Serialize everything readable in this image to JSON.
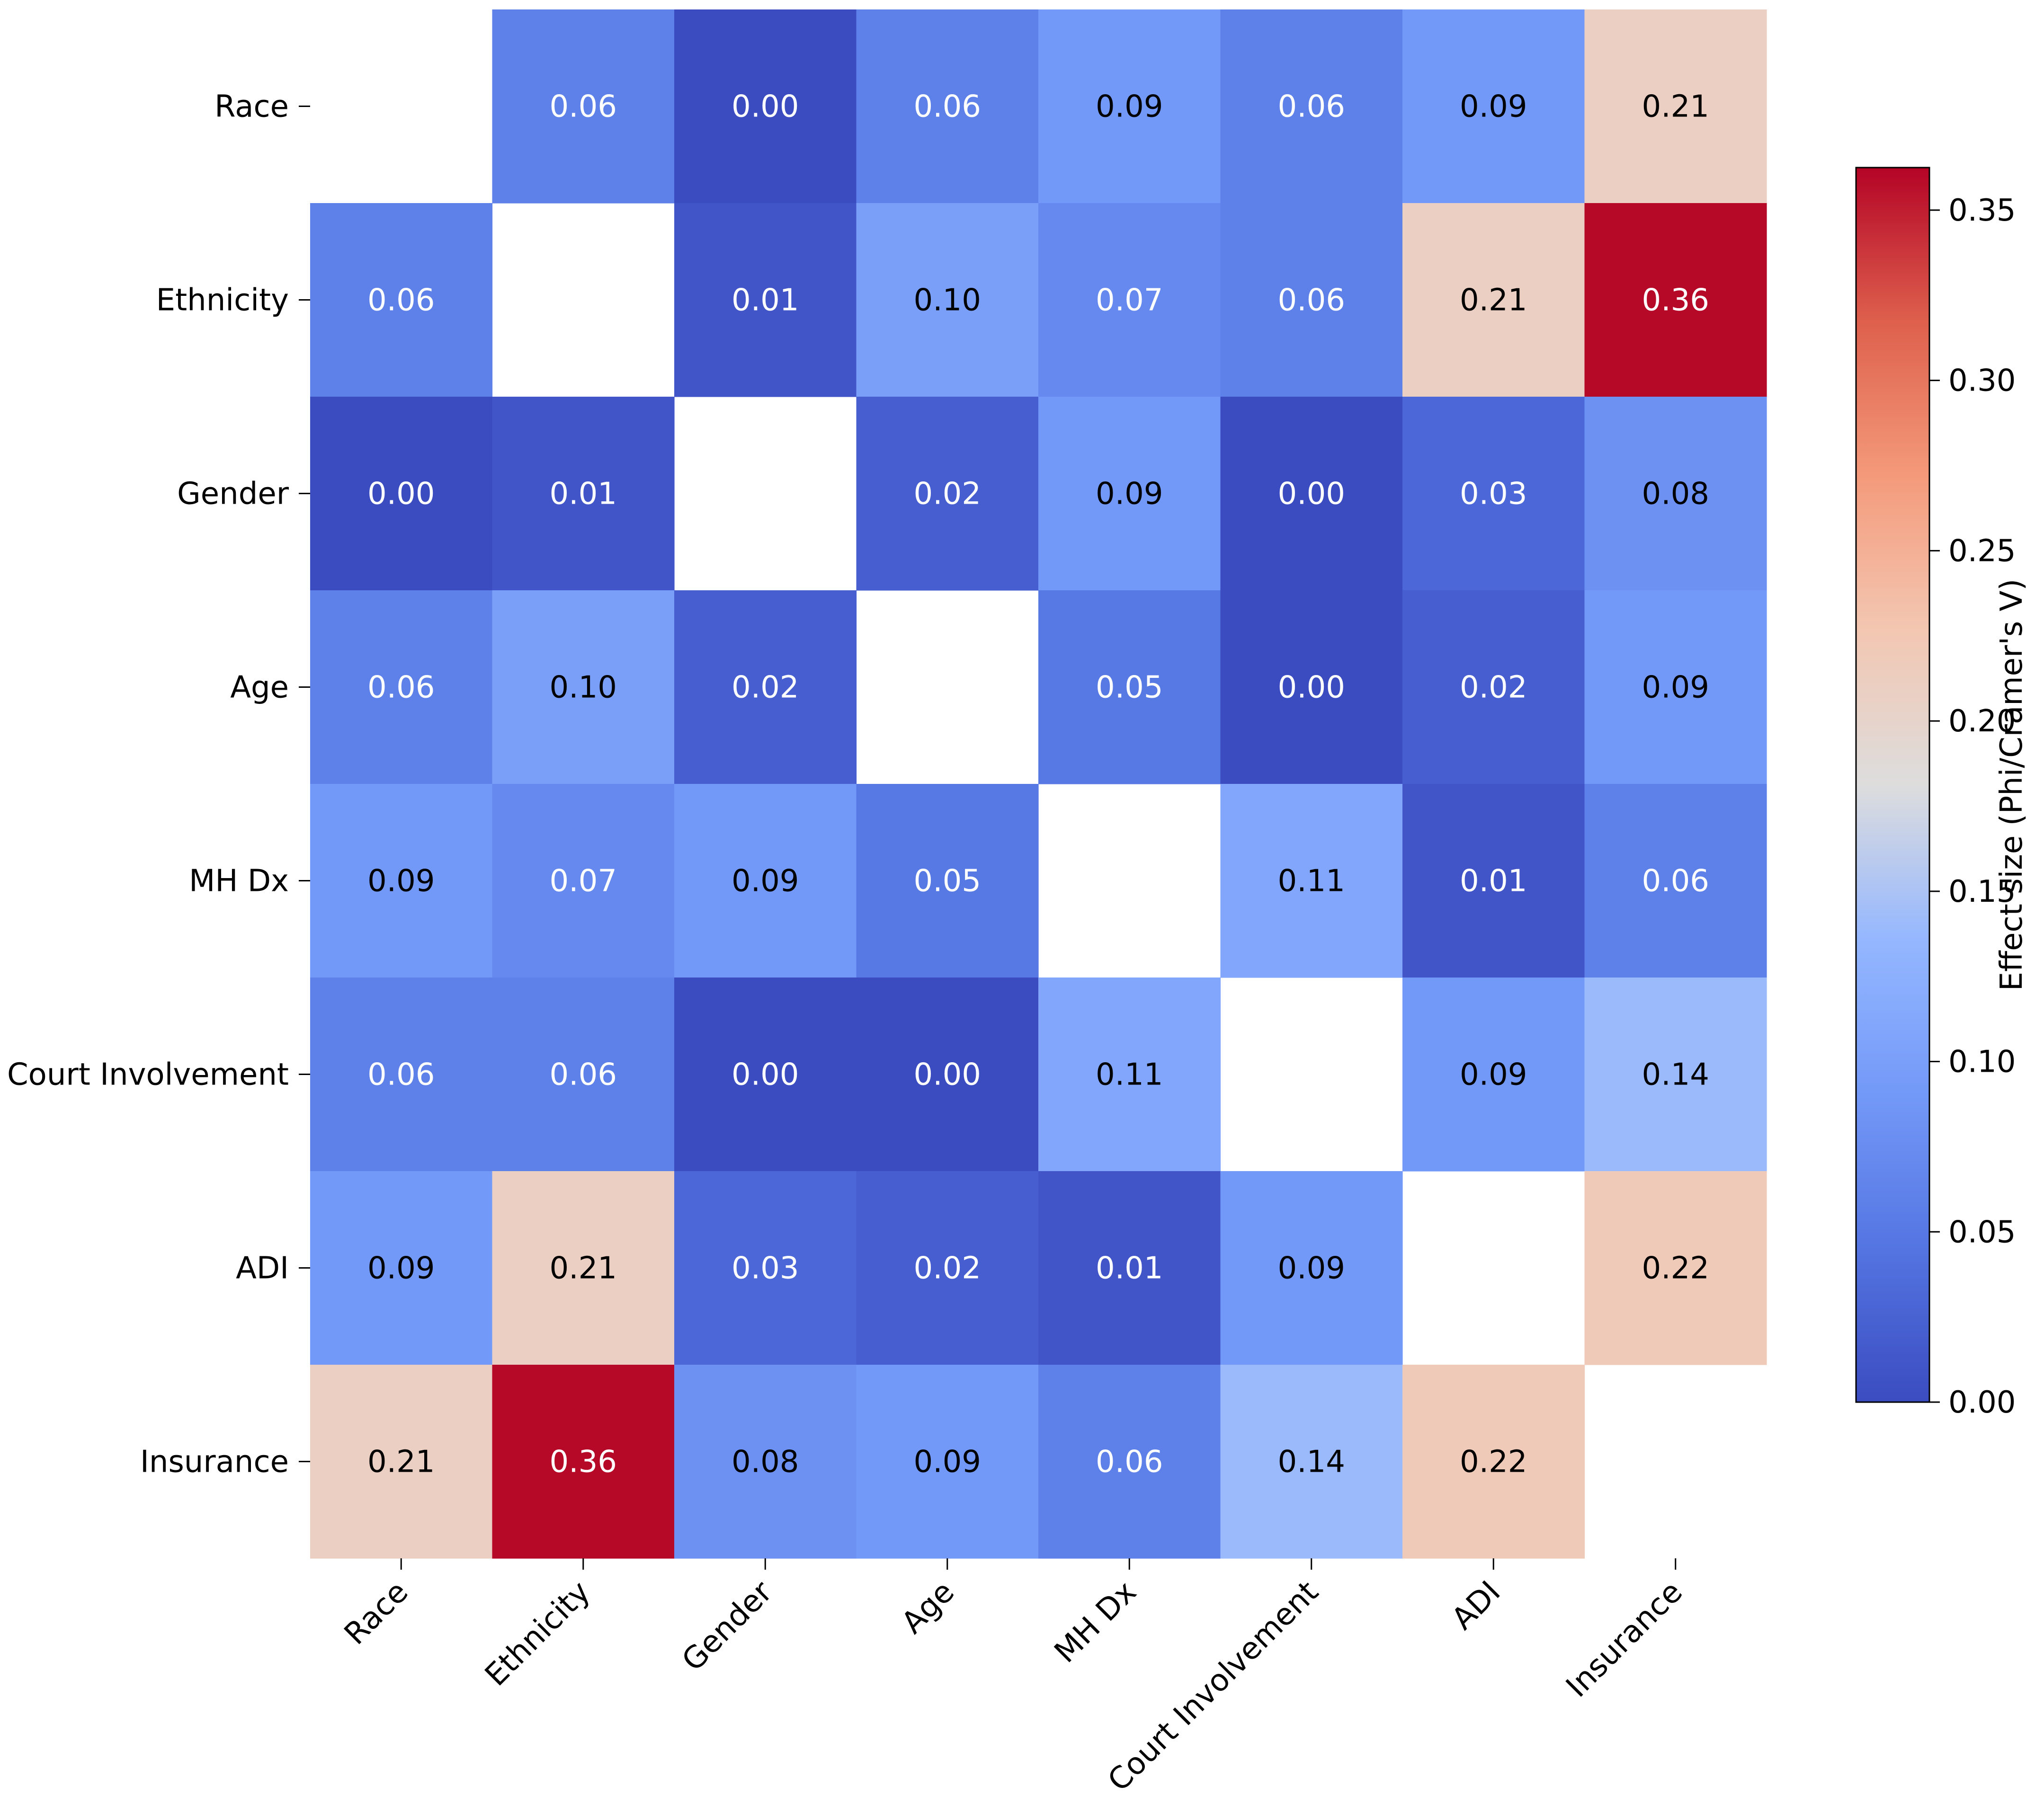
{
  "chart_data": {
    "type": "heatmap",
    "title": "",
    "xlabel": "",
    "ylabel": "",
    "row_labels": [
      "Race",
      "Ethnicity",
      "Gender",
      "Age",
      "MH Dx",
      "Court Involvement",
      "ADI",
      "Insurance"
    ],
    "col_labels": [
      "Race",
      "Ethnicity",
      "Gender",
      "Age",
      "MH Dx",
      "Court Involvement",
      "ADI",
      "Insurance"
    ],
    "values": [
      [
        null,
        0.06,
        0.0,
        0.06,
        0.09,
        0.06,
        0.09,
        0.21
      ],
      [
        0.06,
        null,
        0.01,
        0.1,
        0.07,
        0.06,
        0.21,
        0.36
      ],
      [
        0.0,
        0.01,
        null,
        0.02,
        0.09,
        0.0,
        0.03,
        0.08
      ],
      [
        0.06,
        0.1,
        0.02,
        null,
        0.05,
        0.0,
        0.02,
        0.09
      ],
      [
        0.09,
        0.07,
        0.09,
        0.05,
        null,
        0.11,
        0.01,
        0.06
      ],
      [
        0.06,
        0.06,
        0.0,
        0.0,
        0.11,
        null,
        0.09,
        0.14
      ],
      [
        0.09,
        0.21,
        0.03,
        0.02,
        0.01,
        0.09,
        null,
        0.22
      ],
      [
        0.21,
        0.36,
        0.08,
        0.09,
        0.06,
        0.14,
        0.22,
        null
      ]
    ],
    "value_format": "0.00",
    "colormap": "coolwarm",
    "colorbar": {
      "label": "Effect size (Phi/Cramer's V)",
      "range": [
        0.0,
        0.3625
      ],
      "ticks": [
        0.0,
        0.05,
        0.1,
        0.15,
        0.2,
        0.25,
        0.3,
        0.35
      ],
      "tick_labels": [
        "0.00",
        "0.05",
        "0.10",
        "0.15",
        "0.20",
        "0.25",
        "0.30",
        "0.35"
      ]
    },
    "diagonal_masked": true
  }
}
